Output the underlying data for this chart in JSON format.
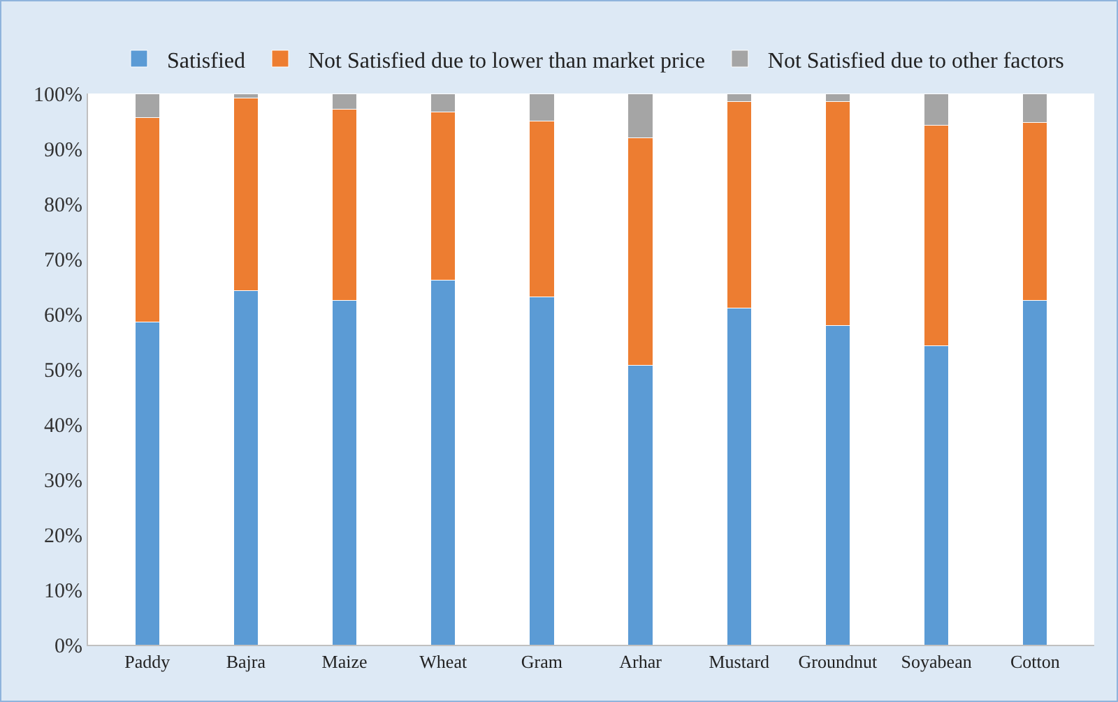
{
  "chart_data": {
    "type": "bar",
    "stacked": true,
    "categories": [
      "Paddy",
      "Bajra",
      "Maize",
      "Wheat",
      "Gram",
      "Arhar",
      "Mustard",
      "Groundnut",
      "Soyabean",
      "Cotton"
    ],
    "series": [
      {
        "name": "Satisfied",
        "color": "#5b9bd5",
        "values": [
          58.5,
          64.2,
          62.5,
          66.2,
          63.1,
          50.7,
          61.1,
          57.9,
          54.3,
          62.5
        ]
      },
      {
        "name": "Not Satisfied due to lower than market price",
        "color": "#ed7d31",
        "values": [
          37.1,
          35.0,
          34.6,
          30.4,
          31.9,
          41.3,
          37.5,
          40.7,
          40.0,
          32.3
        ]
      },
      {
        "name": "Not Satisfied due to other factors",
        "color": "#a5a5a5",
        "values": [
          4.4,
          0.8,
          2.9,
          3.4,
          5.0,
          8.0,
          1.4,
          1.4,
          5.7,
          5.2
        ]
      }
    ],
    "ylim": [
      0,
      100
    ],
    "yticks": [
      {
        "value": 0,
        "label": "0%"
      },
      {
        "value": 10,
        "label": "10%"
      },
      {
        "value": 20,
        "label": "20%"
      },
      {
        "value": 30,
        "label": "30%"
      },
      {
        "value": 40,
        "label": "40%"
      },
      {
        "value": 50,
        "label": "50%"
      },
      {
        "value": 60,
        "label": "60%"
      },
      {
        "value": 70,
        "label": "70%"
      },
      {
        "value": 80,
        "label": "80%"
      },
      {
        "value": 90,
        "label": "90%"
      },
      {
        "value": 100,
        "label": "100%"
      }
    ],
    "grid": false,
    "legend": "top"
  }
}
